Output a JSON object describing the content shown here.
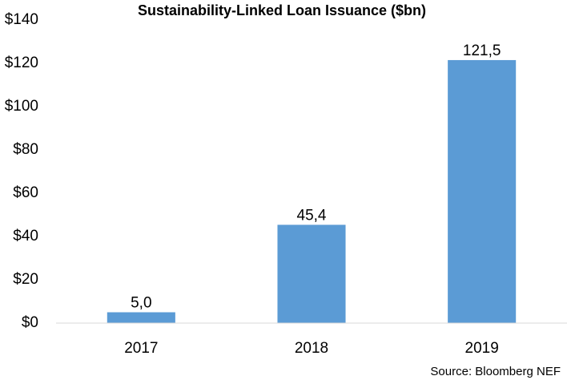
{
  "chart_data": {
    "type": "bar",
    "title": "Sustainability-Linked Loan Issuance ($bn)",
    "categories": [
      "2017",
      "2018",
      "2019"
    ],
    "values": [
      5.0,
      45.4,
      121.5
    ],
    "value_labels": [
      "5,0",
      "45,4",
      "121,5"
    ],
    "color": "#5b9bd5",
    "ylim": [
      0,
      140
    ],
    "yticks": [
      {
        "value": 0,
        "label": "$0"
      },
      {
        "value": 20,
        "label": "$20"
      },
      {
        "value": 40,
        "label": "$40"
      },
      {
        "value": 60,
        "label": "$60"
      },
      {
        "value": 80,
        "label": "$80"
      },
      {
        "value": 100,
        "label": "$100"
      },
      {
        "value": 120,
        "label": "$120"
      },
      {
        "value": 140,
        "label": "$140"
      }
    ],
    "grid": false,
    "source": "Source: Bloomberg NEF"
  }
}
